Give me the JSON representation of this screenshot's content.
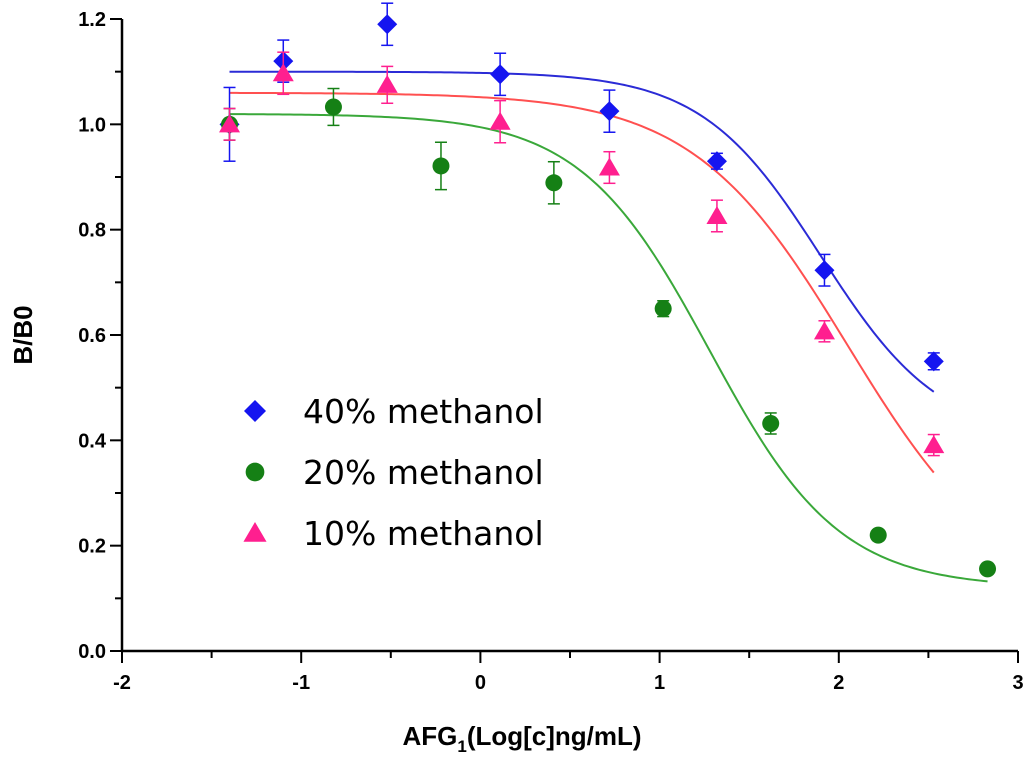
{
  "chart_data": {
    "type": "scatter",
    "title": "",
    "xlabel": "AFG",
    "xlabel_sub": "1",
    "xlabel_rest": "(Log[c]ng/mL)",
    "ylabel": "B/B0",
    "xlim": [
      -2,
      3
    ],
    "ylim": [
      0.0,
      1.2
    ],
    "xticks": [
      -2,
      -1,
      0,
      1,
      2,
      3
    ],
    "xtick_labels": [
      "-2",
      "-1",
      "0",
      "1",
      "2",
      "3"
    ],
    "yticks": [
      0.0,
      0.2,
      0.4,
      0.6,
      0.8,
      1.0,
      1.2
    ],
    "ytick_labels": [
      "0.0",
      "0.2",
      "0.4",
      "0.6",
      "0.8",
      "1.0",
      "1.2"
    ],
    "legend_position": "lower-left",
    "series": [
      {
        "name": "40% methanol",
        "marker": "diamond",
        "color": "#1515f0",
        "line_color": "#2b2bd6",
        "points": [
          {
            "x": -1.4,
            "y": 1.0,
            "err": 0.07
          },
          {
            "x": -1.1,
            "y": 1.12,
            "err": 0.04
          },
          {
            "x": -0.52,
            "y": 1.19,
            "err": 0.04
          },
          {
            "x": 0.11,
            "y": 1.095,
            "err": 0.04
          },
          {
            "x": 0.72,
            "y": 1.025,
            "err": 0.04
          },
          {
            "x": 1.32,
            "y": 0.93,
            "err": 0.015
          },
          {
            "x": 1.92,
            "y": 0.723,
            "err": 0.03
          },
          {
            "x": 2.53,
            "y": 0.55,
            "err": 0.016
          }
        ],
        "fit": {
          "top": 1.1,
          "bottom": 0.4,
          "x0": 1.9,
          "slope": 1.3
        }
      },
      {
        "name": "20% methanol",
        "marker": "circle",
        "color": "#158015",
        "line_color": "#3aa83a",
        "points": [
          {
            "x": -1.4,
            "y": 1.0,
            "err": 0.03
          },
          {
            "x": -0.82,
            "y": 1.033,
            "err": 0.035
          },
          {
            "x": -0.22,
            "y": 0.921,
            "err": 0.045
          },
          {
            "x": 0.41,
            "y": 0.889,
            "err": 0.04
          },
          {
            "x": 1.02,
            "y": 0.65,
            "err": 0.015
          },
          {
            "x": 1.62,
            "y": 0.432,
            "err": 0.02
          },
          {
            "x": 2.22,
            "y": 0.22,
            "err": 0.01
          },
          {
            "x": 2.83,
            "y": 0.156,
            "err": 0.01
          }
        ],
        "fit": {
          "top": 1.02,
          "bottom": 0.12,
          "x0": 1.28,
          "slope": 1.2
        }
      },
      {
        "name": "10% methanol",
        "marker": "triangle",
        "color": "#ff1f8f",
        "line_color": "#ff5050",
        "points": [
          {
            "x": -1.4,
            "y": 1.0,
            "err": 0.03
          },
          {
            "x": -1.1,
            "y": 1.097,
            "err": 0.04
          },
          {
            "x": -0.52,
            "y": 1.075,
            "err": 0.035
          },
          {
            "x": 0.11,
            "y": 1.005,
            "err": 0.04
          },
          {
            "x": 0.72,
            "y": 0.918,
            "err": 0.03
          },
          {
            "x": 1.32,
            "y": 0.826,
            "err": 0.03
          },
          {
            "x": 1.92,
            "y": 0.607,
            "err": 0.02
          },
          {
            "x": 2.53,
            "y": 0.391,
            "err": 0.02
          }
        ],
        "fit": {
          "top": 1.06,
          "bottom": 0.1,
          "x0": 2.05,
          "slope": 1.0
        }
      }
    ]
  }
}
